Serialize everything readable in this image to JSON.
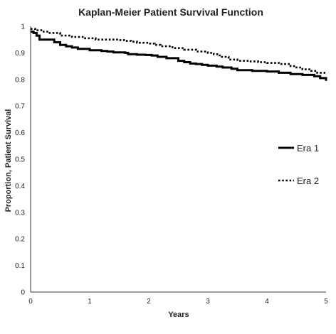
{
  "chart_data": {
    "type": "line",
    "title": "Kaplan-Meier Patient Survival Function",
    "xlabel": "Years",
    "ylabel": "Proportion, Patient Survival",
    "xlim": [
      0,
      5
    ],
    "ylim": [
      0,
      1
    ],
    "x_ticks": [
      0,
      1,
      2,
      3,
      4,
      5
    ],
    "y_ticks": [
      "0",
      "0.1",
      "0.2",
      "0.3",
      "0.4",
      "0.5",
      "0.6",
      "0.7",
      "0.8",
      "0.9",
      "1"
    ],
    "grid": false,
    "legend_position": "right",
    "series": [
      {
        "name": "Era 1",
        "style": "solid",
        "color": "#000000",
        "x": [
          0,
          0.05,
          0.1,
          0.15,
          0.3,
          0.4,
          0.5,
          0.6,
          0.7,
          0.8,
          0.9,
          1.0,
          1.1,
          1.2,
          1.3,
          1.4,
          1.6,
          1.65,
          1.8,
          1.95,
          2.05,
          2.15,
          2.3,
          2.5,
          2.6,
          2.7,
          2.8,
          2.9,
          3.0,
          3.15,
          3.25,
          3.4,
          3.5,
          3.6,
          3.75,
          3.9,
          4.0,
          4.2,
          4.4,
          4.6,
          4.8,
          4.9,
          5.0
        ],
        "y": [
          0.98,
          0.975,
          0.965,
          0.95,
          0.95,
          0.94,
          0.93,
          0.925,
          0.92,
          0.915,
          0.915,
          0.91,
          0.91,
          0.907,
          0.905,
          0.902,
          0.9,
          0.895,
          0.893,
          0.892,
          0.89,
          0.885,
          0.88,
          0.87,
          0.865,
          0.86,
          0.858,
          0.855,
          0.852,
          0.848,
          0.845,
          0.84,
          0.835,
          0.835,
          0.832,
          0.832,
          0.83,
          0.825,
          0.82,
          0.817,
          0.812,
          0.805,
          0.795
        ]
      },
      {
        "name": "Era 2",
        "style": "dotted",
        "color": "#000000",
        "x": [
          0,
          0.1,
          0.2,
          0.3,
          0.5,
          0.7,
          0.9,
          1.1,
          1.3,
          1.5,
          1.6,
          1.7,
          1.8,
          2.0,
          2.1,
          2.2,
          2.4,
          2.6,
          2.8,
          3.0,
          3.1,
          3.2,
          3.35,
          3.5,
          3.7,
          3.85,
          4.0,
          4.2,
          4.4,
          4.5,
          4.6,
          4.75,
          4.85,
          5.0
        ],
        "y": [
          0.99,
          0.985,
          0.98,
          0.975,
          0.965,
          0.96,
          0.955,
          0.95,
          0.95,
          0.948,
          0.945,
          0.942,
          0.938,
          0.935,
          0.93,
          0.925,
          0.918,
          0.912,
          0.905,
          0.9,
          0.895,
          0.885,
          0.875,
          0.87,
          0.868,
          0.865,
          0.862,
          0.858,
          0.85,
          0.845,
          0.838,
          0.832,
          0.825,
          0.82
        ]
      }
    ]
  }
}
